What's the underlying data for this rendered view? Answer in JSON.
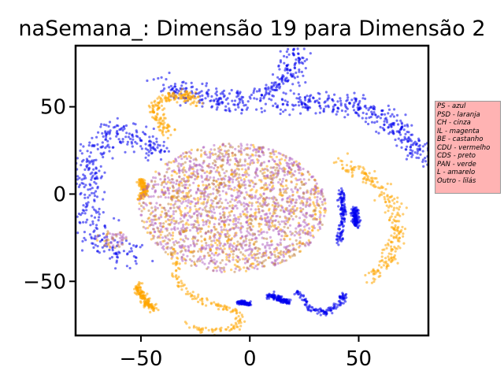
{
  "chart_data": {
    "type": "scatter",
    "title": "naSemana_: Dimensão 19 para Dimensão 2",
    "xlabel": "",
    "ylabel": "",
    "xlim": [
      -80,
      82
    ],
    "ylim": [
      -81,
      85
    ],
    "xticks": [
      -50,
      0,
      50
    ],
    "yticks": [
      50,
      0,
      -50
    ],
    "tick_labels": {
      "x": [
        "−50",
        "0",
        "50"
      ],
      "y": [
        "50",
        "0",
        "−50"
      ]
    },
    "grid": false,
    "legend_placement": "right, outside plot",
    "legend_text": [
      "PS - azul",
      "PSD - laranja",
      "CH - cinza",
      "IL - magenta",
      "BE - castanho",
      "CDU - vermelho",
      "CDS - preto",
      "PAN - verde",
      "L - amarelo",
      "Outro - lilás"
    ],
    "colors": {
      "blue": "#0000ee",
      "orange": "#ffa500",
      "purple": "#b060c0",
      "brown": "#c08040",
      "legend_bg": "#ffb3b3"
    },
    "clusters": [
      {
        "color": "blue",
        "shape": "curve",
        "points": [
          [
            -40,
            62
          ],
          [
            -20,
            55
          ],
          [
            -5,
            52
          ],
          [
            10,
            58
          ],
          [
            18,
            68
          ],
          [
            22,
            78
          ],
          [
            20,
            82
          ]
        ],
        "width": 6
      },
      {
        "color": "blue",
        "shape": "curve",
        "points": [
          [
            15,
            50
          ],
          [
            35,
            52
          ],
          [
            50,
            50
          ],
          [
            60,
            45
          ],
          [
            68,
            38
          ],
          [
            75,
            30
          ],
          [
            80,
            20
          ]
        ],
        "width": 6
      },
      {
        "color": "blue",
        "shape": "curve",
        "points": [
          [
            -42,
            22
          ],
          [
            -50,
            32
          ],
          [
            -58,
            36
          ],
          [
            -67,
            34
          ],
          [
            -72,
            22
          ],
          [
            -75,
            5
          ],
          [
            -73,
            -15
          ],
          [
            -68,
            -30
          ],
          [
            -60,
            -34
          ],
          [
            -52,
            -32
          ]
        ],
        "width": 7
      },
      {
        "color": "blue",
        "shape": "curve",
        "points": [
          [
            42,
            3
          ],
          [
            43,
            -10
          ],
          [
            41,
            -28
          ]
        ],
        "width": 1.5
      },
      {
        "color": "blue",
        "shape": "curve",
        "points": [
          [
            48,
            -8
          ],
          [
            49,
            -18
          ]
        ],
        "width": 1.5
      },
      {
        "color": "blue",
        "shape": "curve",
        "points": [
          [
            22,
            -56
          ],
          [
            28,
            -66
          ],
          [
            35,
            -68
          ],
          [
            42,
            -62
          ],
          [
            43,
            -57
          ]
        ],
        "width": 1.5
      },
      {
        "color": "blue",
        "shape": "curve",
        "points": [
          [
            9,
            -58
          ],
          [
            18,
            -62
          ]
        ],
        "width": 1.5
      },
      {
        "color": "blue",
        "shape": "curve",
        "points": [
          [
            -5,
            -62
          ],
          [
            0,
            -63
          ]
        ],
        "width": 1
      },
      {
        "color": "orange",
        "shape": "curve",
        "points": [
          [
            -37,
            35
          ],
          [
            -44,
            48
          ],
          [
            -40,
            55
          ],
          [
            -30,
            57
          ],
          [
            -24,
            53
          ]
        ],
        "width": 3
      },
      {
        "color": "orange",
        "shape": "curve",
        "points": [
          [
            -50,
            8
          ],
          [
            -48,
            2
          ],
          [
            -50,
            -2
          ]
        ],
        "width": 1.5
      },
      {
        "color": "orange",
        "shape": "curve",
        "points": [
          [
            -52,
            -52
          ],
          [
            -48,
            -62
          ],
          [
            -44,
            -66
          ]
        ],
        "width": 2
      },
      {
        "color": "orange",
        "shape": "curve",
        "points": [
          [
            -34,
            -36
          ],
          [
            -34,
            -48
          ],
          [
            -30,
            -56
          ],
          [
            -20,
            -62
          ],
          [
            -8,
            -66
          ],
          [
            -4,
            -72
          ],
          [
            -8,
            -78
          ],
          [
            -20,
            -78
          ],
          [
            -30,
            -74
          ]
        ],
        "width": 2
      },
      {
        "color": "orange",
        "shape": "curve",
        "points": [
          [
            42,
            18
          ],
          [
            55,
            10
          ],
          [
            66,
            -5
          ],
          [
            68,
            -25
          ],
          [
            62,
            -42
          ],
          [
            55,
            -50
          ]
        ],
        "width": 4
      },
      {
        "color": "mixed",
        "shape": "ellipse",
        "center": [
          -8,
          -8
        ],
        "radii": [
          43,
          37
        ],
        "width": 0
      },
      {
        "color": "mixed",
        "shape": "ellipse",
        "center": [
          -64,
          -26
        ],
        "radii": [
          8,
          5
        ],
        "width": 0
      }
    ]
  }
}
